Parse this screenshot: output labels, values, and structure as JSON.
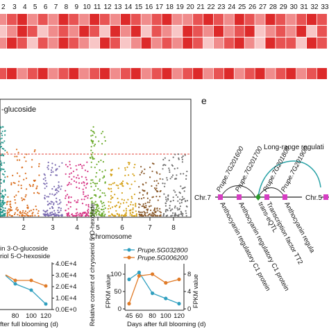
{
  "heatmap": {
    "column_numbers": [
      "3",
      "4",
      "5",
      "6",
      "7",
      "8",
      "9",
      "10",
      "11",
      "12",
      "13",
      "14",
      "15",
      "16",
      "17",
      "18",
      "19",
      "20",
      "21",
      "22",
      "23",
      "24",
      "25",
      "26",
      "27",
      "28",
      "29",
      "30",
      "31",
      "32",
      "33"
    ],
    "column_numbers_partial": "2",
    "palette": [
      "#fdeeee",
      "#f8c6c6",
      "#f08c8c",
      "#e85353",
      "#dd2a2a"
    ],
    "row1": [
      2,
      3,
      4,
      2,
      3,
      2,
      4,
      3,
      2,
      4,
      3,
      2,
      4,
      3,
      2,
      3,
      4,
      2,
      2,
      3,
      4,
      3,
      2,
      4,
      3,
      2,
      4,
      3,
      2,
      3,
      4,
      3
    ],
    "row2": [
      1,
      2,
      4,
      3,
      1,
      2,
      3,
      2,
      4,
      3,
      1,
      4,
      2,
      4,
      1,
      3,
      2,
      1,
      4,
      3,
      2,
      4,
      2,
      3,
      4,
      1,
      2,
      3,
      2,
      4,
      1,
      3
    ],
    "row3": [
      2,
      4,
      3,
      1,
      3,
      2,
      4,
      3,
      2,
      1,
      4,
      3,
      1,
      2,
      4,
      2,
      3,
      2,
      4,
      3,
      1,
      2,
      3,
      4,
      2,
      1,
      4,
      3,
      3,
      1,
      4,
      3
    ],
    "row4": [
      3,
      4,
      2,
      3,
      4,
      2,
      3,
      4,
      2,
      3,
      4,
      2,
      3,
      4,
      2,
      3,
      4,
      2,
      3,
      4,
      2,
      3,
      4,
      2,
      3,
      4,
      2,
      3,
      4,
      2,
      3,
      4
    ]
  },
  "manhattan": {
    "title_partial": "-glucoside",
    "xlabel": "Chromosome",
    "chromosomes": [
      "2",
      "3",
      "4",
      "5",
      "6",
      "7",
      "8"
    ],
    "colors": [
      "#2a9a8f",
      "#d96b1a",
      "#7a6bb0",
      "#d63384",
      "#6aaa2a",
      "#d4a016",
      "#8a5a2b",
      "#6f6f6f"
    ]
  },
  "panel_e": {
    "letter": "e",
    "long_range_label": "Long-range regulati",
    "chr_left": "Chr.7",
    "chr_right": "Chr.5",
    "genes": [
      "Prupe.7G201600",
      "Prupe.7G201700",
      "Prupe.7G201800",
      "Prupe.7G201900"
    ],
    "annotations": [
      "Anthocyanin regulatory C1 protein",
      "Anthocyanin regulatory C1 protein",
      "trans-eQTL",
      "Transcription factor TT2",
      "Anthocyanin regula"
    ]
  },
  "plot_left": {
    "legend_line1": "in 3-O-glucoside",
    "legend_line2": "riol 5-O-hexoside",
    "x_ticks": [
      "80",
      "100",
      "120"
    ],
    "xlabel_partial": "fter full blooming (d)",
    "y2_ticks": [
      "0.0E+0",
      "1.0E+4",
      "2.0E+4",
      "3.0E+4",
      "4.0E+4"
    ],
    "y2_label": "Relative content of chrysoeriol 5-O-hexoside"
  },
  "chart_data": {
    "type": "line",
    "title": "",
    "xlabel": "Days after full blooming (d)",
    "ylabel": "FPKM value",
    "x": [
      45,
      60,
      80,
      100,
      120
    ],
    "series": [
      {
        "name": "Prupe.5G032800",
        "values": [
          85,
          105,
          45,
          30,
          15
        ],
        "color": "#2f9fbf"
      },
      {
        "name": "Prupe.5G006200",
        "values": [
          15,
          95,
          100,
          75,
          85
        ],
        "color": "#e07b28"
      }
    ],
    "x_ticks": [
      "45",
      "60",
      "80",
      "100",
      "120"
    ],
    "y_ticks": [
      "0",
      "50",
      "100"
    ],
    "right_y_ticks": [
      "0",
      "4",
      "8"
    ],
    "right_ylabel": "FPKM value"
  }
}
